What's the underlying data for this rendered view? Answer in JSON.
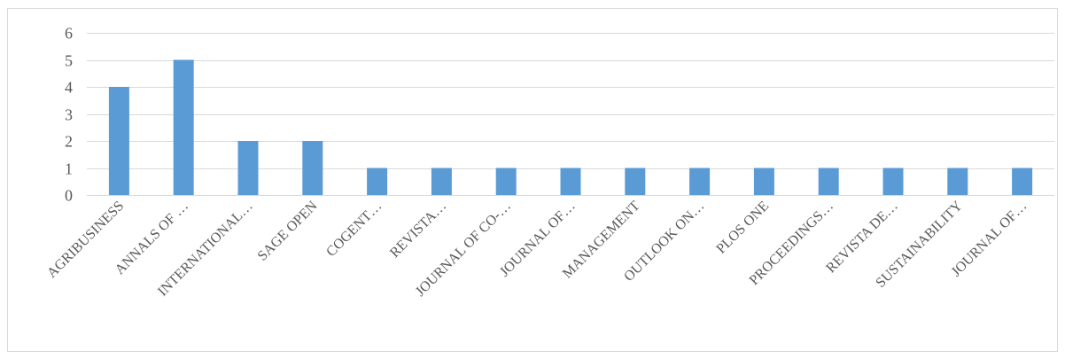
{
  "chart_data": {
    "type": "bar",
    "title": "",
    "xlabel": "",
    "ylabel": "",
    "ylim": [
      0,
      6
    ],
    "yticks": [
      0,
      1,
      2,
      3,
      4,
      5,
      6
    ],
    "grid": true,
    "bar_color": "#5b9bd5",
    "categories": [
      "AGRIBUSINESS",
      "ANNALS OF …",
      "INTERNATIONAL…",
      "SAGE OPEN",
      "COGENT…",
      "REVISTA…",
      "JOURNAL OF CO-…",
      "JOURNAL OF…",
      "MANAGEMENT",
      "OUTLOOK ON…",
      "PLOS ONE",
      "PROCEEDINGS…",
      "REVISTA DE…",
      "SUSTAINABILITY",
      "JOURNAL OF…"
    ],
    "values": [
      4,
      5,
      2,
      2,
      1,
      1,
      1,
      1,
      1,
      1,
      1,
      1,
      1,
      1,
      1
    ]
  }
}
